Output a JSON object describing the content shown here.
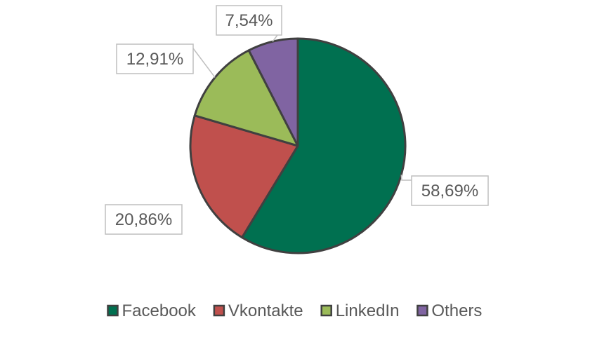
{
  "chart_data": {
    "type": "pie",
    "title": "",
    "legend_position": "bottom",
    "data_labels": "outside-end with leader lines, boxed",
    "start_angle_deg": 0,
    "direction": "clockwise",
    "slices": [
      {
        "label": "Facebook",
        "value": 58.69,
        "display": "58,69%",
        "color": "#007050"
      },
      {
        "label": "Vkontakte",
        "value": 20.86,
        "display": "20,86%",
        "color": "#c0504d"
      },
      {
        "label": "LinkedIn",
        "value": 12.91,
        "display": "12,91%",
        "color": "#9bbb59"
      },
      {
        "label": "Others",
        "value": 7.54,
        "display": "7,54%",
        "color": "#8064a2"
      }
    ],
    "slice_border_color": "#404040",
    "label_border_color": "#bfbfbf",
    "text_color": "#595959"
  }
}
